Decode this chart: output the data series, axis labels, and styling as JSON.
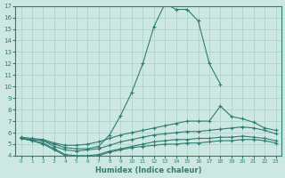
{
  "xlabel": "Humidex (Indice chaleur)",
  "xlim": [
    -0.5,
    23.5
  ],
  "ylim": [
    4,
    17
  ],
  "yticks": [
    4,
    5,
    6,
    7,
    8,
    9,
    10,
    11,
    12,
    13,
    14,
    15,
    16,
    17
  ],
  "xticks": [
    0,
    1,
    2,
    3,
    4,
    5,
    6,
    7,
    8,
    9,
    10,
    11,
    12,
    13,
    14,
    15,
    16,
    17,
    18,
    19,
    20,
    21,
    22,
    23
  ],
  "background_color": "#cde8e2",
  "grid_color": "#a8cfc8",
  "line_color": "#2e7d72",
  "lines": [
    {
      "x": [
        0,
        1,
        2,
        3,
        4,
        5,
        6,
        7,
        8,
        9,
        10,
        11,
        12,
        13,
        14,
        15,
        16,
        17,
        18,
        19,
        20
      ],
      "y": [
        5.5,
        5.4,
        5.3,
        5.0,
        4.7,
        4.6,
        4.6,
        4.8,
        5.8,
        7.5,
        9.5,
        12.0,
        15.2,
        17.2,
        16.7,
        16.7,
        15.7,
        12.0,
        10.2,
        null,
        null
      ]
    },
    {
      "x": [
        0,
        1,
        2,
        3,
        4,
        5,
        6,
        7,
        8,
        9,
        10,
        11,
        12,
        13,
        14,
        15,
        16,
        17,
        18,
        19,
        20,
        21,
        22,
        23
      ],
      "y": [
        5.6,
        5.5,
        5.4,
        5.1,
        4.9,
        4.9,
        5.0,
        5.2,
        5.5,
        5.8,
        6.0,
        6.2,
        6.4,
        6.6,
        6.8,
        7.0,
        7.0,
        7.0,
        8.3,
        7.4,
        7.2,
        6.9,
        6.4,
        6.2
      ]
    },
    {
      "x": [
        0,
        1,
        2,
        3,
        4,
        5,
        6,
        7,
        8,
        9,
        10,
        11,
        12,
        13,
        14,
        15,
        16,
        17,
        18,
        19,
        20,
        21,
        22,
        23
      ],
      "y": [
        5.5,
        5.4,
        5.3,
        4.8,
        4.5,
        4.4,
        4.5,
        4.6,
        4.9,
        5.2,
        5.4,
        5.6,
        5.8,
        5.9,
        6.0,
        6.1,
        6.1,
        6.2,
        6.3,
        6.4,
        6.5,
        6.4,
        6.2,
        5.9
      ]
    },
    {
      "x": [
        0,
        1,
        2,
        3,
        4,
        5,
        6,
        7,
        8,
        9,
        10,
        11,
        12,
        13,
        14,
        15,
        16,
        17,
        18,
        19,
        20,
        21,
        22,
        23
      ],
      "y": [
        5.5,
        5.3,
        5.1,
        4.6,
        4.1,
        4.0,
        4.0,
        4.1,
        4.4,
        4.6,
        4.8,
        5.0,
        5.2,
        5.3,
        5.4,
        5.4,
        5.5,
        5.5,
        5.6,
        5.6,
        5.7,
        5.6,
        5.5,
        5.3
      ]
    },
    {
      "x": [
        0,
        1,
        2,
        3,
        4,
        5,
        6,
        7,
        8,
        9,
        10,
        11,
        12,
        13,
        14,
        15,
        16,
        17,
        18,
        19,
        20,
        21,
        22,
        23
      ],
      "y": [
        5.5,
        5.3,
        5.0,
        4.5,
        4.0,
        3.9,
        3.9,
        4.0,
        4.3,
        4.5,
        4.7,
        4.8,
        4.9,
        5.0,
        5.0,
        5.1,
        5.1,
        5.2,
        5.3,
        5.3,
        5.4,
        5.4,
        5.3,
        5.1
      ]
    }
  ]
}
